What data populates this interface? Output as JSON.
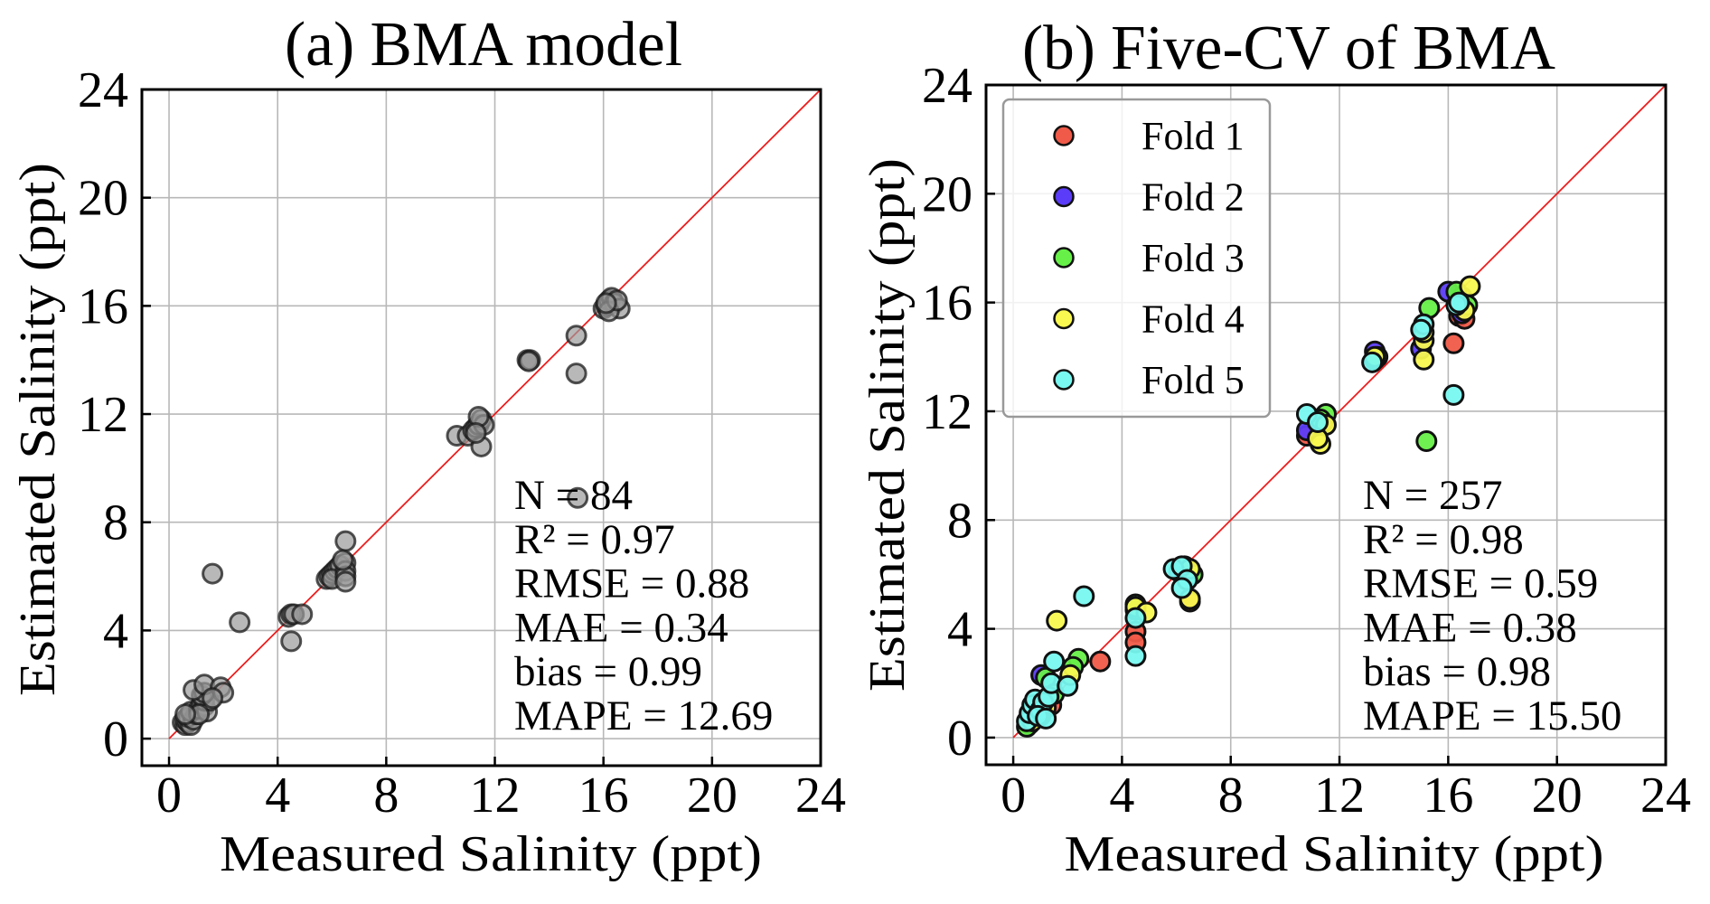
{
  "chart_data": [
    {
      "type": "scatter",
      "panel": "a",
      "title": "(a) BMA model",
      "xlabel": "Measured Salinity (ppt)",
      "ylabel": "Estimated Salinity (ppt)",
      "xlim": [
        -1,
        24
      ],
      "ylim": [
        -1,
        24
      ],
      "xticks": [
        0,
        4,
        8,
        12,
        16,
        20,
        24
      ],
      "yticks": [
        0,
        4,
        8,
        12,
        16,
        20,
        24
      ],
      "xtick_labels": [
        "0",
        "4",
        "8",
        "12",
        "16",
        "20",
        "24"
      ],
      "ytick_labels": [
        "0",
        "4",
        "8",
        "12",
        "16",
        "20",
        "24"
      ],
      "grid": true,
      "reference_line": {
        "name": "1:1 line",
        "color": "#ee1c1c",
        "from": [
          0,
          0
        ],
        "to": [
          24,
          24
        ]
      },
      "marker_color": "#9a9a9a",
      "marker_edge_color": "#1a1a1a",
      "marker_alpha": 0.7,
      "stats": [
        "N = 84",
        "R² = 0.97",
        "RMSE = 0.88",
        "MAE = 0.34",
        "bias = 0.99",
        "MAPE = 12.69"
      ],
      "points": [
        [
          0.5,
          0.6
        ],
        [
          0.6,
          0.5
        ],
        [
          0.6,
          0.7
        ],
        [
          0.7,
          0.6
        ],
        [
          0.8,
          0.5
        ],
        [
          0.7,
          0.8
        ],
        [
          0.9,
          0.7
        ],
        [
          1.0,
          0.9
        ],
        [
          0.8,
          1.0
        ],
        [
          1.1,
          1.1
        ],
        [
          1.2,
          1.3
        ],
        [
          1.3,
          1.2
        ],
        [
          1.4,
          1.0
        ],
        [
          1.3,
          1.4
        ],
        [
          1.5,
          1.4
        ],
        [
          1.2,
          1.6
        ],
        [
          1.3,
          1.7
        ],
        [
          0.9,
          1.8
        ],
        [
          1.3,
          2.0
        ],
        [
          1.9,
          1.9
        ],
        [
          2.0,
          1.7
        ],
        [
          1.6,
          1.5
        ],
        [
          1.1,
          0.9
        ],
        [
          0.6,
          0.9
        ],
        [
          1.6,
          6.1
        ],
        [
          2.6,
          4.3
        ],
        [
          4.4,
          4.5
        ],
        [
          4.5,
          4.6
        ],
        [
          4.6,
          4.6
        ],
        [
          4.9,
          4.6
        ],
        [
          4.5,
          3.6
        ],
        [
          5.8,
          5.9
        ],
        [
          5.9,
          6.0
        ],
        [
          6.0,
          6.1
        ],
        [
          6.1,
          6.2
        ],
        [
          6.2,
          6.3
        ],
        [
          6.3,
          6.4
        ],
        [
          6.0,
          5.9
        ],
        [
          6.5,
          6.5
        ],
        [
          6.5,
          6.2
        ],
        [
          6.5,
          6.0
        ],
        [
          6.5,
          5.8
        ],
        [
          6.5,
          7.3
        ],
        [
          6.4,
          6.6
        ],
        [
          10.6,
          11.2
        ],
        [
          11.0,
          11.2
        ],
        [
          11.2,
          11.4
        ],
        [
          11.3,
          11.5
        ],
        [
          11.4,
          11.6
        ],
        [
          11.5,
          11.8
        ],
        [
          11.6,
          11.6
        ],
        [
          11.4,
          11.9
        ],
        [
          11.5,
          10.8
        ],
        [
          11.3,
          11.3
        ],
        [
          13.2,
          14.0
        ],
        [
          13.3,
          14.0
        ],
        [
          13.25,
          13.95
        ],
        [
          15.0,
          14.9
        ],
        [
          15.0,
          13.5
        ],
        [
          15.05,
          8.9
        ],
        [
          16.0,
          15.9
        ],
        [
          16.1,
          16.0
        ],
        [
          16.2,
          16.2
        ],
        [
          16.3,
          16.3
        ],
        [
          16.4,
          16.1
        ],
        [
          16.6,
          15.9
        ],
        [
          16.2,
          15.8
        ],
        [
          16.5,
          16.2
        ],
        [
          16.1,
          16.1
        ]
      ]
    },
    {
      "type": "scatter",
      "panel": "b",
      "title": "(b) Five-CV of BMA",
      "xlabel": "Measured Salinity (ppt)",
      "ylabel": "Estimated Salinity (ppt)",
      "xlim": [
        -1,
        24
      ],
      "ylim": [
        -1,
        24
      ],
      "xticks": [
        0,
        4,
        8,
        12,
        16,
        20,
        24
      ],
      "yticks": [
        0,
        4,
        8,
        12,
        16,
        20,
        24
      ],
      "xtick_labels": [
        "0",
        "4",
        "8",
        "12",
        "16",
        "20",
        "24"
      ],
      "ytick_labels": [
        "0",
        "4",
        "8",
        "12",
        "16",
        "20",
        "24"
      ],
      "grid": true,
      "reference_line": {
        "name": "1:1 line",
        "color": "#ee1c1c",
        "from": [
          0,
          0
        ],
        "to": [
          24,
          24
        ]
      },
      "legend_position": "top-left",
      "stats": [
        "N = 257",
        "R² = 0.98",
        "RMSE = 0.59",
        "MAE = 0.38",
        "bias = 0.98",
        "MAPE = 15.50"
      ],
      "series": [
        {
          "name": "Fold 1",
          "color": "#f05a48",
          "points": [
            [
              0.6,
              0.5
            ],
            [
              1.0,
              0.8
            ],
            [
              1.4,
              1.2
            ],
            [
              3.2,
              2.8
            ],
            [
              4.5,
              3.9
            ],
            [
              4.5,
              3.5
            ],
            [
              6.5,
              5.0
            ],
            [
              10.8,
              11.1
            ],
            [
              11.4,
              11.6
            ],
            [
              13.3,
              13.9
            ],
            [
              16.2,
              14.5
            ],
            [
              16.4,
              15.5
            ],
            [
              16.6,
              15.4
            ]
          ]
        },
        {
          "name": "Fold 2",
          "color": "#5b3cf8",
          "points": [
            [
              0.6,
              0.7
            ],
            [
              0.9,
              1.0
            ],
            [
              1.03,
              2.3
            ],
            [
              1.3,
              1.5
            ],
            [
              4.5,
              4.7
            ],
            [
              6.1,
              6.1
            ],
            [
              10.8,
              11.3
            ],
            [
              11.2,
              11.6
            ],
            [
              13.3,
              14.2
            ],
            [
              15.0,
              14.3
            ],
            [
              16.0,
              16.4
            ],
            [
              16.5,
              15.6
            ]
          ]
        },
        {
          "name": "Fold 3",
          "color": "#66f048",
          "points": [
            [
              0.5,
              0.4
            ],
            [
              1.2,
              2.2
            ],
            [
              1.5,
              1.6
            ],
            [
              2.4,
              2.9
            ],
            [
              2.2,
              2.6
            ],
            [
              4.5,
              4.9
            ],
            [
              6.3,
              6.3
            ],
            [
              6.6,
              6.0
            ],
            [
              11.5,
              11.9
            ],
            [
              11.3,
              11.7
            ],
            [
              13.4,
              14.0
            ],
            [
              15.3,
              15.8
            ],
            [
              15.2,
              10.9
            ],
            [
              16.5,
              16.2
            ],
            [
              16.7,
              15.9
            ],
            [
              16.3,
              16.4
            ]
          ]
        },
        {
          "name": "Fold 4",
          "color": "#f8f850",
          "points": [
            [
              0.7,
              0.6
            ],
            [
              1.6,
              4.3
            ],
            [
              2.1,
              2.3
            ],
            [
              1.2,
              1.1
            ],
            [
              4.5,
              4.8
            ],
            [
              4.9,
              4.6
            ],
            [
              6.5,
              5.1
            ],
            [
              6.5,
              6.2
            ],
            [
              11.3,
              10.8
            ],
            [
              11.5,
              11.5
            ],
            [
              11.2,
              11.0
            ],
            [
              13.3,
              14.0
            ],
            [
              15.1,
              13.9
            ],
            [
              15.1,
              14.6
            ],
            [
              15.1,
              14.9
            ],
            [
              16.8,
              16.6
            ],
            [
              16.6,
              15.7
            ]
          ]
        },
        {
          "name": "Fold 5",
          "color": "#78f8f0",
          "points": [
            [
              0.5,
              0.6
            ],
            [
              0.6,
              0.9
            ],
            [
              0.7,
              1.2
            ],
            [
              0.8,
              1.4
            ],
            [
              1.0,
              1.0
            ],
            [
              1.1,
              1.3
            ],
            [
              1.3,
              1.5
            ],
            [
              1.4,
              2.0
            ],
            [
              1.5,
              2.8
            ],
            [
              2.0,
              1.9
            ],
            [
              2.6,
              5.2
            ],
            [
              0.9,
              0.8
            ],
            [
              1.2,
              0.7
            ],
            [
              4.5,
              4.4
            ],
            [
              4.5,
              3.0
            ],
            [
              5.9,
              6.2
            ],
            [
              6.2,
              6.3
            ],
            [
              6.4,
              5.8
            ],
            [
              6.2,
              5.5
            ],
            [
              10.8,
              11.9
            ],
            [
              11.2,
              11.6
            ],
            [
              13.2,
              13.8
            ],
            [
              15.1,
              15.2
            ],
            [
              15.0,
              15.0
            ],
            [
              16.2,
              12.6
            ],
            [
              16.3,
              15.9
            ],
            [
              16.4,
              16.0
            ]
          ]
        }
      ]
    }
  ]
}
